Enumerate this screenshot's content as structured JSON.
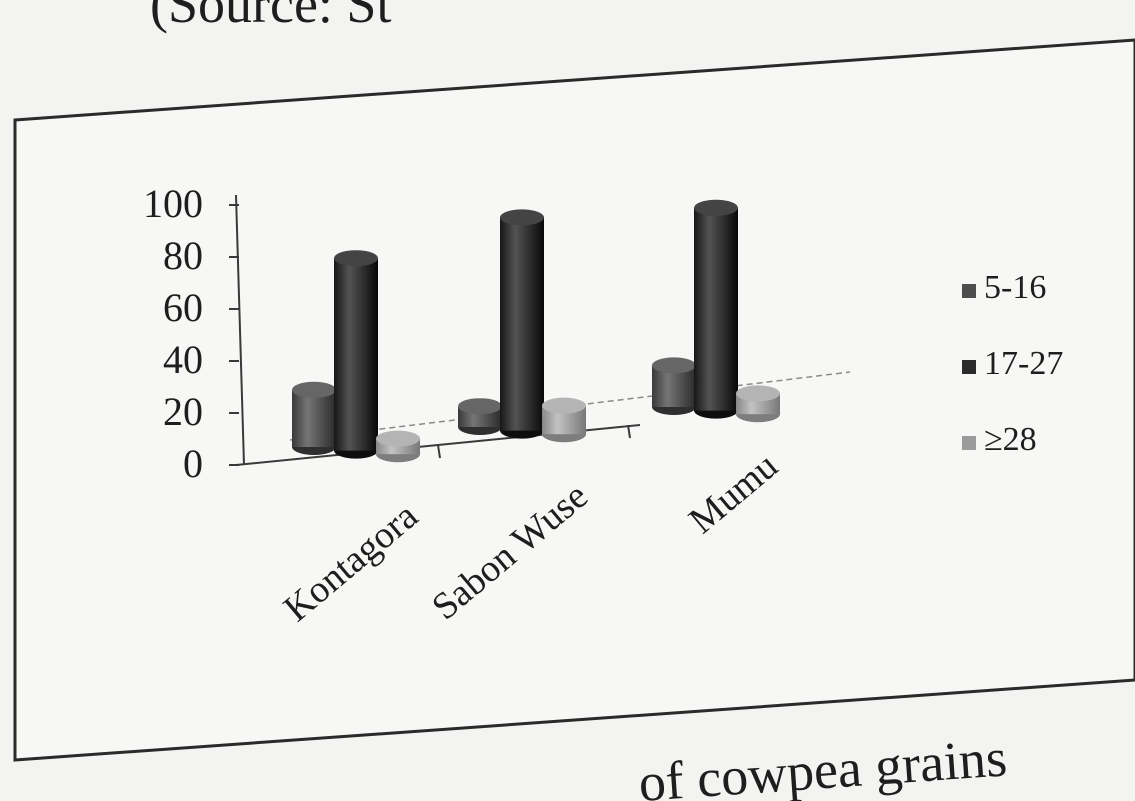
{
  "page": {
    "source_fragment": "(Source: St",
    "caption_fragment": "of cowpea grains"
  },
  "colors": {
    "series_5_16": "#4d4d4d",
    "series_17_27": "#2b2b2b",
    "series_28": "#9b9b9b",
    "frame": "#2a2a2a"
  },
  "chart_data": {
    "type": "bar",
    "categories": [
      "Kontagora",
      "Sabon Wuse",
      "Mumu"
    ],
    "series": [
      {
        "name": "5-16",
        "values": [
          22,
          8,
          16
        ]
      },
      {
        "name": "17-27",
        "values": [
          74,
          82,
          78
        ]
      },
      {
        "name": "≥28",
        "values": [
          6,
          11,
          8
        ]
      }
    ],
    "yticks": [
      "0",
      "20",
      "40",
      "60",
      "80",
      "100"
    ],
    "ylim": [
      0,
      100
    ],
    "legend": "right",
    "grid": false
  }
}
